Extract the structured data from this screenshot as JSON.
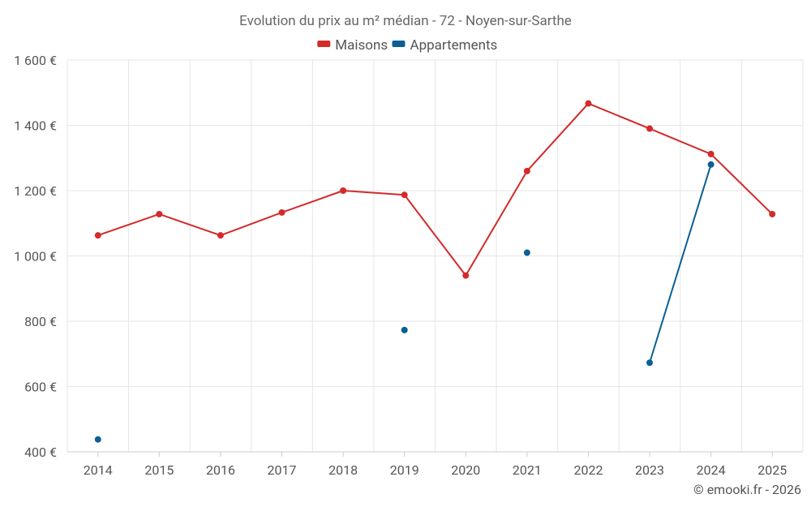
{
  "chart_data": {
    "type": "line",
    "title": "Evolution du prix au m² médian - 72 - Noyen-sur-Sarthe",
    "categories": [
      "2014",
      "2015",
      "2016",
      "2017",
      "2018",
      "2019",
      "2020",
      "2021",
      "2022",
      "2023",
      "2024",
      "2025"
    ],
    "ylim": [
      400,
      1600
    ],
    "yticks": [
      400,
      600,
      800,
      1000,
      1200,
      1400,
      1600
    ],
    "ytick_labels": [
      "400 €",
      "600 €",
      "800 €",
      "1 000 €",
      "1 200 €",
      "1 400 €",
      "1 600 €"
    ],
    "xlabel": "",
    "ylabel": "",
    "grid": true,
    "legend_position": "top-center",
    "series": [
      {
        "name": "Maisons",
        "color": "#d42a2a",
        "values": [
          1063,
          1128,
          1063,
          1133,
          1200,
          1187,
          940,
          1260,
          1467,
          1390,
          1312,
          1128
        ]
      },
      {
        "name": "Appartements",
        "color": "#0b5f95",
        "values": [
          438,
          null,
          null,
          null,
          null,
          773,
          null,
          1010,
          null,
          673,
          1280,
          null
        ]
      }
    ]
  },
  "credit": "© emooki.fr - 2026"
}
